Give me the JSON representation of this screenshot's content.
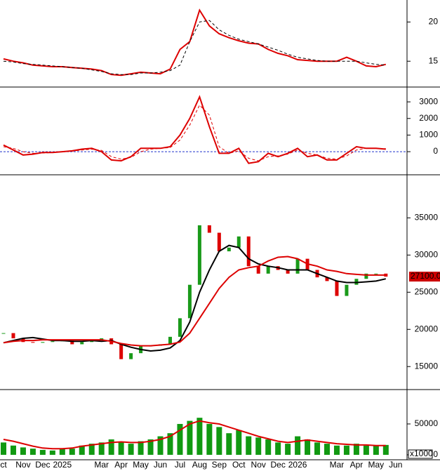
{
  "chart_data": [
    {
      "type": "line",
      "ylim": [
        11.8,
        22.8
      ],
      "yticks": [
        15,
        20
      ],
      "series": [
        {
          "name": null,
          "color": "#dd0000",
          "values": [
            15.3,
            15.0,
            14.8,
            14.5,
            14.4,
            14.3,
            14.3,
            14.2,
            14.1,
            14.0,
            13.8,
            13.3,
            13.2,
            13.4,
            13.6,
            13.5,
            13.4,
            14.0,
            16.5,
            17.5,
            21.5,
            19.5,
            18.5,
            18.0,
            17.6,
            17.3,
            17.2,
            16.5,
            16.0,
            15.7,
            15.2,
            15.1,
            15.0,
            15.0,
            15.0,
            15.5,
            15.0,
            14.4,
            14.3,
            14.6,
            null
          ]
        },
        {
          "name": null,
          "color": "#000000",
          "dashed": true,
          "values": [
            15.0,
            14.9,
            14.7,
            14.6,
            14.5,
            14.4,
            14.3,
            14.2,
            14.1,
            13.9,
            13.7,
            13.4,
            13.3,
            13.3,
            13.5,
            13.5,
            13.6,
            13.8,
            14.5,
            17.5,
            20.0,
            20.2,
            19.0,
            18.3,
            17.8,
            17.5,
            17.2,
            16.8,
            16.4,
            15.9,
            15.5,
            15.3,
            15.1,
            15.0,
            15.0,
            15.0,
            15.0,
            14.8,
            14.6,
            14.5,
            null
          ]
        }
      ]
    },
    {
      "type": "line",
      "ylim": [
        -1350,
        3850
      ],
      "yticks": [
        0,
        1000,
        2000,
        3000
      ],
      "zero_line": 0,
      "series": [
        {
          "name": null,
          "color": "#dd0000",
          "values": [
            400,
            100,
            -200,
            -150,
            -50,
            -50,
            0,
            50,
            150,
            200,
            0,
            -500,
            -550,
            -300,
            200,
            200,
            200,
            300,
            1000,
            2000,
            3300,
            1500,
            -100,
            -100,
            200,
            -700,
            -600,
            -100,
            -300,
            -100,
            200,
            -300,
            -200,
            -500,
            -500,
            -100,
            300,
            200,
            200,
            150,
            null
          ]
        },
        {
          "name": null,
          "color": "#dd0000",
          "dashed": true,
          "values": [
            300,
            200,
            0,
            -100,
            -80,
            -50,
            -20,
            30,
            100,
            150,
            80,
            -300,
            -450,
            -350,
            0,
            150,
            200,
            250,
            700,
            1600,
            2800,
            2200,
            300,
            -100,
            50,
            -400,
            -550,
            -300,
            -250,
            -150,
            100,
            -100,
            -200,
            -400,
            -450,
            -250,
            100,
            200,
            200,
            180,
            null
          ]
        }
      ]
    },
    {
      "type": "candlestick",
      "ylim": [
        12000,
        40700
      ],
      "yticks": [
        15000,
        20000,
        25000,
        30000,
        35000
      ],
      "last_label": {
        "value": 27100,
        "label": "27100.00"
      },
      "up_color": "#1a9a1a",
      "down_color": "#dd0000",
      "close": [
        19500,
        18800,
        18300,
        18200,
        18300,
        18400,
        18500,
        18000,
        18300,
        18600,
        18800,
        18000,
        16000,
        16800,
        17800,
        17800,
        18000,
        19000,
        21500,
        26000,
        34000,
        33000,
        30500,
        31000,
        32500,
        28500,
        27500,
        28500,
        28000,
        27500,
        29500,
        28000,
        27000,
        26500,
        24500,
        26000,
        26800,
        27500,
        27500,
        27100,
        null
      ],
      "series": [
        {
          "name": null,
          "color": "#000000",
          "values": [
            18200,
            18500,
            18800,
            18900,
            18700,
            18500,
            18500,
            18400,
            18400,
            18500,
            18400,
            18500,
            18000,
            17600,
            17300,
            17100,
            17200,
            17500,
            18500,
            21000,
            25000,
            28000,
            30500,
            31300,
            31000,
            29500,
            28800,
            28500,
            28300,
            28000,
            28000,
            28000,
            27500,
            27000,
            26500,
            26300,
            26300,
            26400,
            26500,
            26800,
            null
          ]
        },
        {
          "name": null,
          "color": "#dd0000",
          "values": [
            18200,
            18400,
            18500,
            18500,
            18600,
            18600,
            18600,
            18600,
            18600,
            18600,
            18600,
            18400,
            18100,
            17900,
            17800,
            17800,
            17900,
            18000,
            18300,
            19500,
            21500,
            23500,
            25500,
            27000,
            28000,
            28300,
            28500,
            29200,
            29700,
            29800,
            29500,
            28800,
            28500,
            28000,
            27800,
            27500,
            27400,
            27300,
            27300,
            27300,
            null
          ]
        }
      ]
    },
    {
      "type": "bar",
      "ylim": [
        -8000,
        104500
      ],
      "yticks": [
        0,
        50000
      ],
      "unit_label": "x1000",
      "categories": [
        "ct",
        null,
        "Nov",
        null,
        "Dec",
        null,
        "2025",
        null,
        null,
        null,
        "Mar",
        null,
        "Apr",
        null,
        "May",
        null,
        "Jun",
        null,
        "Jul",
        null,
        "Aug",
        null,
        "Sep",
        null,
        "Oct",
        null,
        "Nov",
        null,
        "Dec",
        null,
        "2026",
        null,
        null,
        null,
        "Mar",
        null,
        "Apr",
        null,
        "May",
        null,
        "Jun"
      ],
      "color": "#119911",
      "values": [
        20000,
        15000,
        12000,
        10000,
        8000,
        7000,
        9000,
        10000,
        15000,
        18000,
        20000,
        25000,
        20000,
        18000,
        22000,
        25000,
        30000,
        35000,
        50000,
        55000,
        60000,
        50000,
        45000,
        35000,
        40000,
        30000,
        28000,
        25000,
        20000,
        18000,
        30000,
        25000,
        20000,
        18000,
        15000,
        15000,
        18000,
        15000,
        15000,
        16000,
        null
      ],
      "series": [
        {
          "name": null,
          "color": "#dd0000",
          "values": [
            25000,
            22000,
            18000,
            14000,
            11000,
            10000,
            10000,
            11000,
            14000,
            16000,
            18000,
            20000,
            21000,
            20000,
            20000,
            22000,
            25000,
            30000,
            40000,
            50000,
            55000,
            52000,
            50000,
            45000,
            40000,
            35000,
            30000,
            26000,
            22000,
            20000,
            22000,
            24000,
            22000,
            20000,
            18000,
            17000,
            16000,
            16000,
            15000,
            15000,
            null
          ]
        }
      ]
    }
  ]
}
